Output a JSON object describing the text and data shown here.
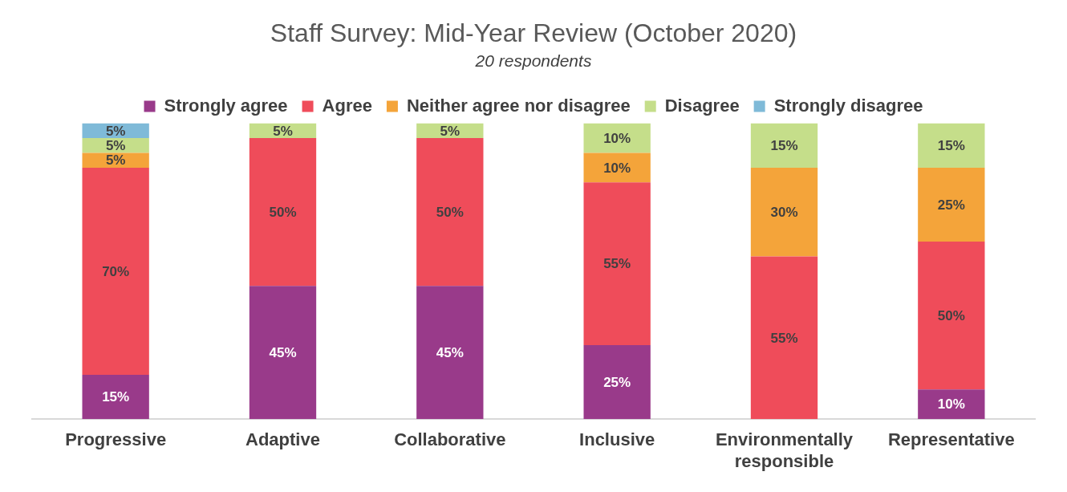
{
  "chart_data": {
    "type": "bar",
    "title": "Staff Survey: Mid-Year Review (October 2020)",
    "subtitle": "20 respondents",
    "categories": [
      "Progressive",
      "Adaptive",
      "Collaborative",
      "Inclusive",
      "Environmentally responsible",
      "Representative"
    ],
    "series": [
      {
        "name": "Strongly agree",
        "color": "#993a8a",
        "values": [
          15,
          45,
          45,
          25,
          null,
          10
        ],
        "value_labels": [
          "15%",
          "45%",
          "45%",
          "25%",
          null,
          "10%"
        ]
      },
      {
        "name": "Agree",
        "color": "#ef4c5a",
        "values": [
          70,
          50,
          50,
          55,
          55,
          50
        ],
        "value_labels": [
          "70%",
          "50%",
          "50%",
          "55%",
          "55%",
          "50%"
        ]
      },
      {
        "name": "Neither agree nor disagree",
        "color": "#f4a43a",
        "values": [
          5,
          null,
          null,
          10,
          30,
          25
        ],
        "value_labels": [
          "5%",
          null,
          null,
          "10%",
          "30%",
          "25%"
        ]
      },
      {
        "name": "Disagree",
        "color": "#c5de8a",
        "values": [
          5,
          5,
          5,
          10,
          15,
          15
        ],
        "value_labels": [
          "5%",
          "5%",
          "5%",
          "10%",
          "15%",
          "15%"
        ]
      },
      {
        "name": "Strongly disagree",
        "color": "#7fbad8",
        "values": [
          5,
          null,
          null,
          null,
          null,
          null
        ],
        "value_labels": [
          "5%",
          null,
          null,
          null,
          null,
          null
        ]
      }
    ],
    "stacked": true,
    "ylim": [
      0,
      100
    ],
    "grid": false,
    "legend": "top"
  }
}
